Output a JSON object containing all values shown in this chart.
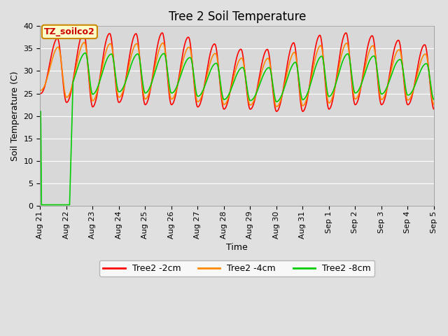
{
  "title": "Tree 2 Soil Temperature",
  "xlabel": "Time",
  "ylabel": "Soil Temperature (C)",
  "ylim": [
    0,
    40
  ],
  "annotation_text": "TZ_soilco2",
  "legend": [
    "Tree2 -2cm",
    "Tree2 -4cm",
    "Tree2 -8cm"
  ],
  "line_colors": [
    "#ff0000",
    "#ff8800",
    "#00cc00"
  ],
  "line_width": 1.2,
  "plot_bg_color": "#d8d8d8",
  "fig_bg_color": "#e0e0e0",
  "xtick_labels": [
    "Aug 21",
    "Aug 22",
    "Aug 23",
    "Aug 24",
    "Aug 25",
    "Aug 26",
    "Aug 27",
    "Aug 28",
    "Aug 29",
    "Aug 30",
    "Aug 31",
    "Sep 1",
    "Sep 2",
    "Sep 3",
    "Sep 4",
    "Sep 5"
  ],
  "grid_color": "#ffffff",
  "annotation_fg": "#cc0000",
  "annotation_bg": "#ffffcc",
  "annotation_border": "#cc8800",
  "title_fontsize": 12,
  "label_fontsize": 9,
  "tick_fontsize": 8,
  "legend_fontsize": 9
}
